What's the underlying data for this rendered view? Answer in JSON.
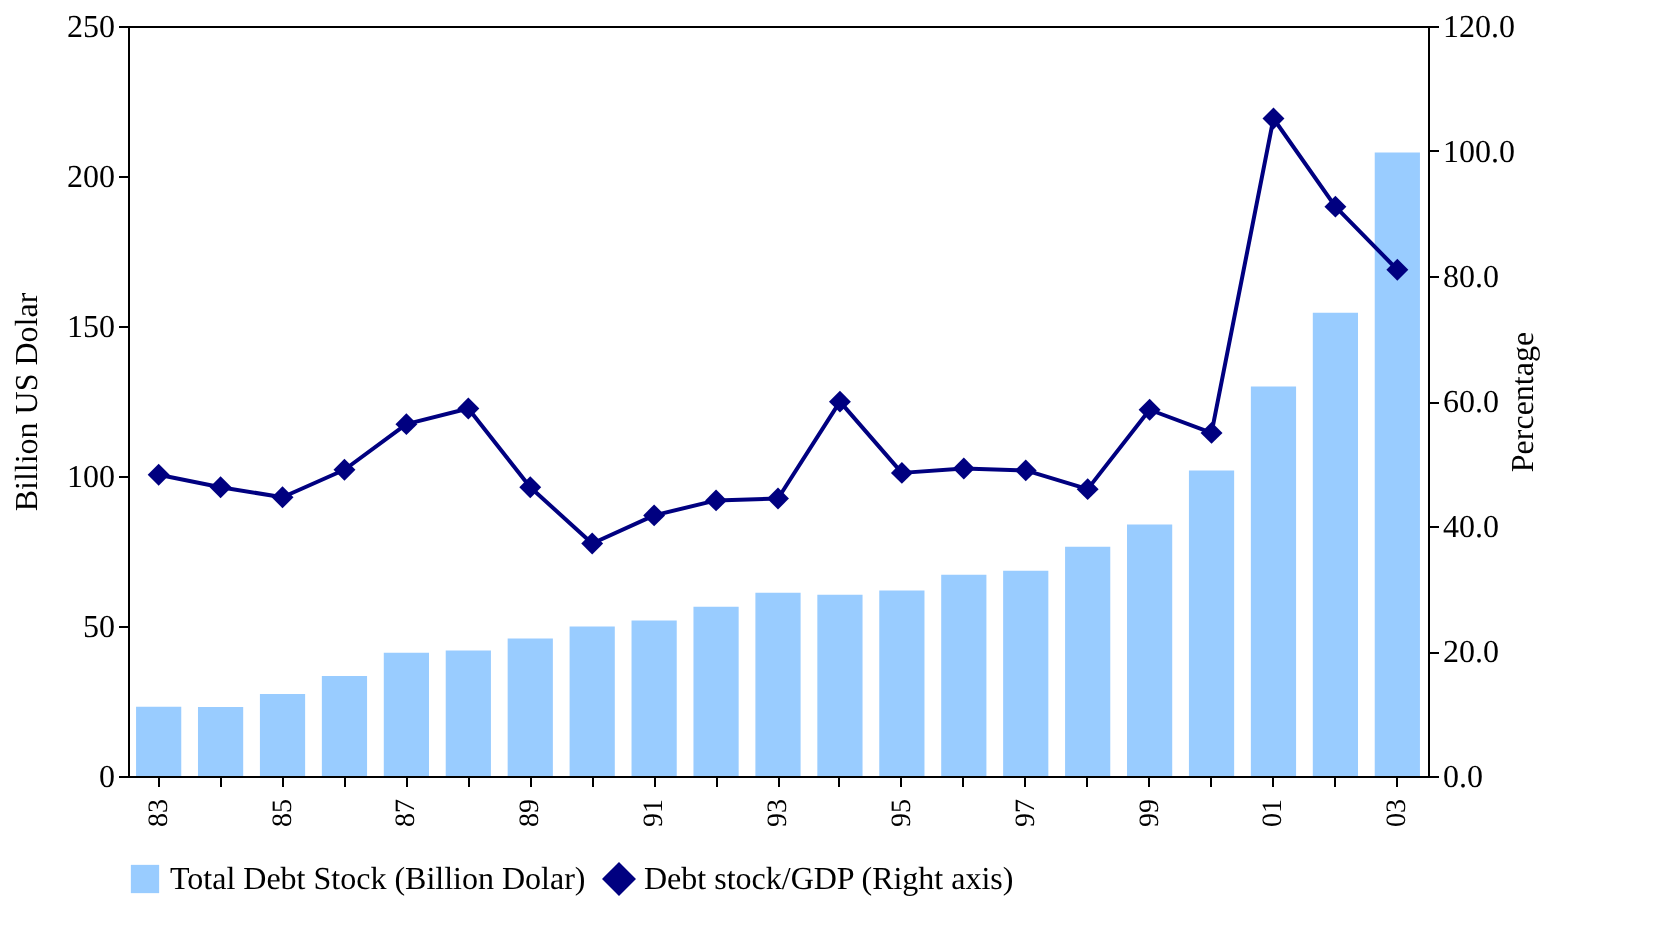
{
  "chart_data": {
    "type": "bar",
    "ylabel": "Billion US Dolar",
    "y2label": "Percentage",
    "categories": [
      "83",
      null,
      "85",
      null,
      "87",
      null,
      "89",
      null,
      "91",
      null,
      "93",
      null,
      "95",
      null,
      "97",
      null,
      "99",
      null,
      "01",
      null,
      "03"
    ],
    "series": [
      {
        "name": "Total Debt Stock (Billion Dolar)",
        "color": "#99ccff",
        "values": [
          23.1,
          23,
          27.3,
          33.3,
          41.1,
          41.8,
          45.8,
          49.8,
          51.8,
          56.4,
          61.1,
          60.4,
          61.8,
          67.1,
          68.4,
          76.4,
          83.8,
          101.8,
          129.8,
          154.4,
          207.8
        ]
      },
      {
        "name": "Debt stock/GDP (Right axis)",
        "type": "line",
        "axis": "y2",
        "color": "#000080",
        "marker": "diamond",
        "line_style": "solid",
        "values": [
          48.2,
          46.2,
          44.6,
          49.0,
          56.3,
          58.8,
          46.2,
          37.2,
          41.7,
          44.1,
          44.4,
          59.9,
          48.5,
          49.2,
          48.9,
          45.9,
          58.6,
          54.9,
          105.2,
          91.1,
          81.0
        ]
      }
    ],
    "ylim": [
      0,
      250
    ],
    "yticks": [
      0,
      50,
      100,
      150,
      200,
      250
    ],
    "y2lim": [
      0,
      120
    ],
    "y2ticks": [
      {
        "value": 0,
        "label": "0.0"
      },
      {
        "value": 20,
        "label": "20.0"
      },
      {
        "value": 40,
        "label": "40.0"
      },
      {
        "value": 60,
        "label": "60.0"
      },
      {
        "value": 80,
        "label": "80.0"
      },
      {
        "value": 100,
        "label": "100.0"
      },
      {
        "value": 120,
        "label": "120.0"
      }
    ],
    "grid": false,
    "legend": "bottom"
  }
}
